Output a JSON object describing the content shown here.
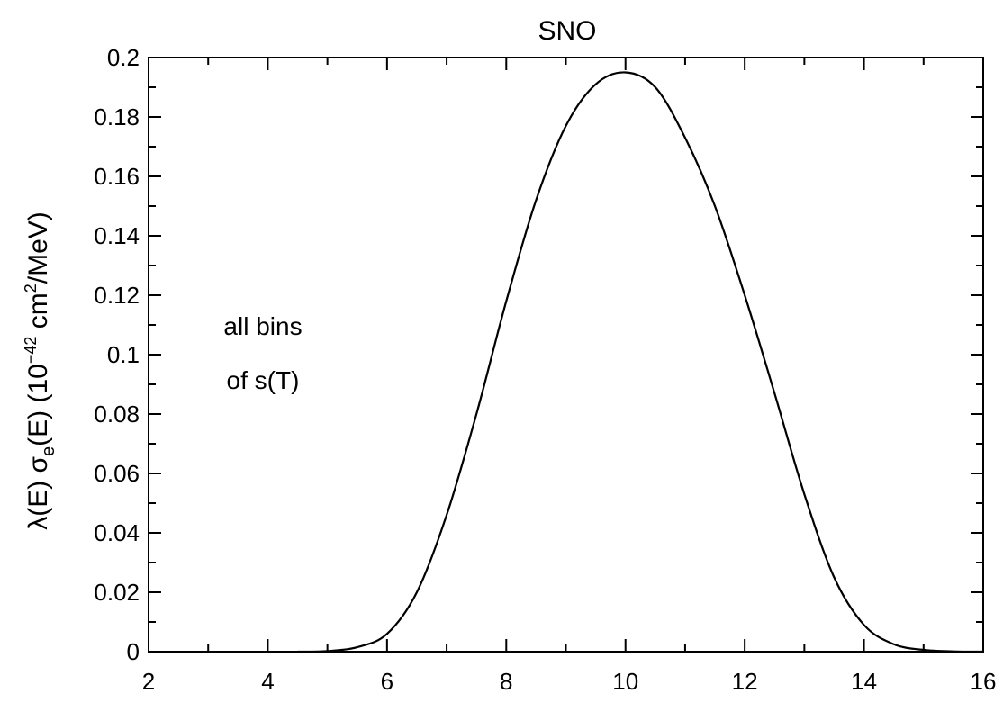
{
  "chart_data": {
    "type": "line",
    "title": "SNO",
    "xlabel": "",
    "ylabel_main": "λ(E) σ",
    "ylabel_sub": "e",
    "ylabel_tail": "(E)     (10",
    "ylabel_exp": "−42",
    "ylabel_units": " cm",
    "ylabel_units_exp": "2",
    "ylabel_units_tail": "/MeV)",
    "xlim": [
      2,
      16
    ],
    "ylim": [
      0,
      0.2
    ],
    "x_ticks": [
      2,
      4,
      6,
      8,
      10,
      12,
      14,
      16
    ],
    "x_tick_labels": [
      "2",
      "4",
      "6",
      "8",
      "10",
      "12",
      "14",
      "16"
    ],
    "y_ticks": [
      0,
      0.02,
      0.04,
      0.06,
      0.08,
      0.1,
      0.12,
      0.14,
      0.16,
      0.18,
      0.2
    ],
    "y_tick_labels": [
      "0",
      "0.02",
      "0.04",
      "0.06",
      "0.08",
      "0.1",
      "0.12",
      "0.14",
      "0.16",
      "0.18",
      "0.2"
    ],
    "grid": false,
    "annotations": [
      "all bins",
      "of s(T)"
    ],
    "series": [
      {
        "x": [
          4.5,
          5.0,
          5.5,
          6.0,
          6.5,
          7.0,
          7.5,
          8.0,
          8.5,
          9.0,
          9.5,
          10.0,
          10.5,
          11.0,
          11.5,
          12.0,
          12.5,
          13.0,
          13.5,
          14.0,
          14.5,
          15.0,
          15.5,
          16.0
        ],
        "y": [
          0.0,
          0.0002,
          0.0015,
          0.006,
          0.02,
          0.046,
          0.08,
          0.118,
          0.152,
          0.177,
          0.191,
          0.195,
          0.19,
          0.173,
          0.15,
          0.12,
          0.087,
          0.053,
          0.025,
          0.009,
          0.0025,
          0.0006,
          0.0001,
          0.0
        ]
      }
    ]
  }
}
